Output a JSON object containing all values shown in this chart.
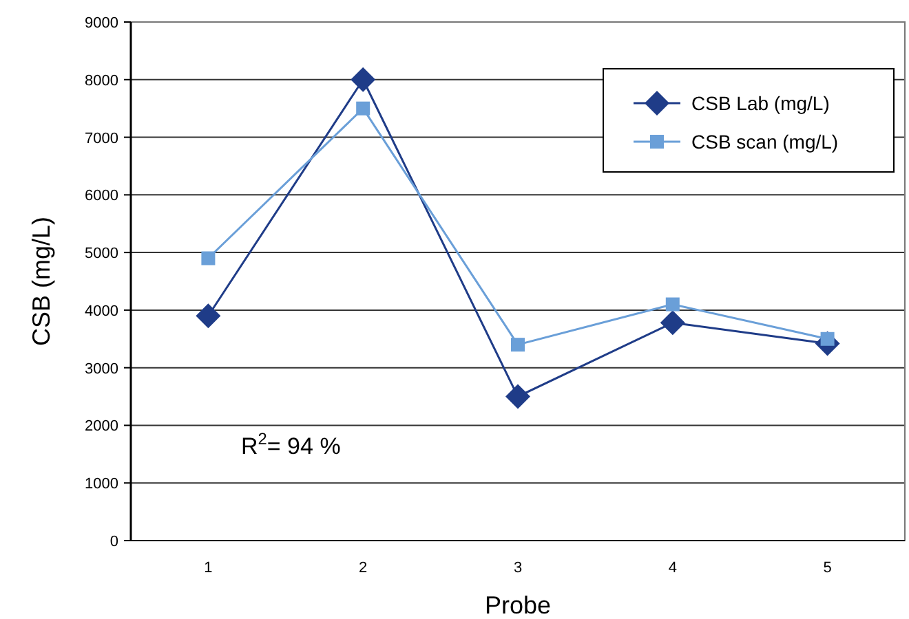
{
  "chart_data": {
    "type": "line",
    "xlabel": "Probe",
    "ylabel": "CSB (mg/L)",
    "categories": [
      "1",
      "2",
      "3",
      "4",
      "5"
    ],
    "series": [
      {
        "name": "CSB Lab (mg/L)",
        "color": "#1f3c88",
        "marker": "diamond",
        "values": [
          3900,
          8000,
          2500,
          3780,
          3420
        ]
      },
      {
        "name": "CSB scan (mg/L)",
        "color": "#6a9fd8",
        "marker": "square",
        "values": [
          4900,
          7500,
          3400,
          4100,
          3500
        ]
      }
    ],
    "ylim": [
      0,
      9000
    ],
    "yticks": [
      0,
      1000,
      2000,
      3000,
      4000,
      5000,
      6000,
      7000,
      8000,
      9000
    ],
    "grid": "y",
    "legend": "top right",
    "line_style": "solid",
    "annotations": [
      {
        "text": "R$^{2}$= 94 %"
      }
    ]
  }
}
